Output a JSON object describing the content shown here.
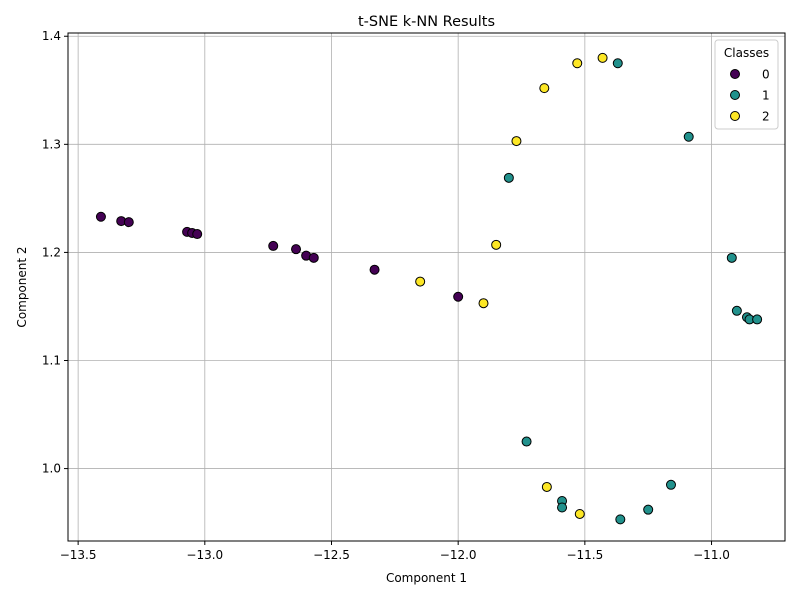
{
  "chart_data": {
    "type": "scatter",
    "title": "t-SNE k-NN Results",
    "xlabel": "Component 1",
    "ylabel": "Component 2",
    "xlim": [
      -13.54,
      -10.71
    ],
    "ylim": [
      0.933,
      1.403
    ],
    "xticks": [
      -13.5,
      -13.0,
      -12.5,
      -12.0,
      -11.5,
      -11.0
    ],
    "xtick_labels": [
      "−13.5",
      "−13.0",
      "−12.5",
      "−12.0",
      "−11.5",
      "−11.0"
    ],
    "yticks": [
      1.0,
      1.1,
      1.2,
      1.3,
      1.4
    ],
    "ytick_labels": [
      "1.0",
      "1.1",
      "1.2",
      "1.3",
      "1.4"
    ],
    "grid": true,
    "legend": {
      "title": "Classes",
      "position": "top-right",
      "entries": [
        {
          "label": "0",
          "color": "#440154"
        },
        {
          "label": "1",
          "color": "#21918c"
        },
        {
          "label": "2",
          "color": "#fde725"
        }
      ]
    },
    "series": [
      {
        "name": "0",
        "color": "#440154",
        "points": [
          [
            -13.41,
            1.233
          ],
          [
            -13.33,
            1.229
          ],
          [
            -13.3,
            1.228
          ],
          [
            -13.07,
            1.219
          ],
          [
            -13.05,
            1.218
          ],
          [
            -13.03,
            1.217
          ],
          [
            -12.73,
            1.206
          ],
          [
            -12.64,
            1.203
          ],
          [
            -12.6,
            1.197
          ],
          [
            -12.57,
            1.195
          ],
          [
            -12.33,
            1.184
          ],
          [
            -12.0,
            1.159
          ]
        ]
      },
      {
        "name": "1",
        "color": "#21918c",
        "points": [
          [
            -11.37,
            1.375
          ],
          [
            -11.09,
            1.307
          ],
          [
            -11.8,
            1.269
          ],
          [
            -10.92,
            1.195
          ],
          [
            -10.9,
            1.146
          ],
          [
            -10.86,
            1.14
          ],
          [
            -10.85,
            1.138
          ],
          [
            -10.82,
            1.138
          ],
          [
            -11.73,
            1.025
          ],
          [
            -11.16,
            0.985
          ],
          [
            -11.59,
            0.97
          ],
          [
            -11.59,
            0.964
          ],
          [
            -11.25,
            0.962
          ],
          [
            -11.36,
            0.953
          ]
        ]
      },
      {
        "name": "2",
        "color": "#fde725",
        "points": [
          [
            -11.43,
            1.38
          ],
          [
            -11.53,
            1.375
          ],
          [
            -11.66,
            1.352
          ],
          [
            -11.77,
            1.303
          ],
          [
            -11.85,
            1.207
          ],
          [
            -12.15,
            1.173
          ],
          [
            -11.9,
            1.153
          ],
          [
            -11.65,
            0.983
          ],
          [
            -11.52,
            0.958
          ]
        ]
      }
    ]
  }
}
